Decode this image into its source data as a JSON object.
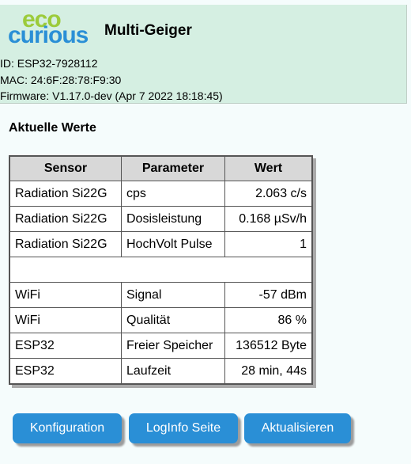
{
  "header": {
    "logo_top": "eco",
    "logo_bottom": "curious",
    "title": "Multi-Geiger",
    "id_line": "ID: ESP32-7928112",
    "mac_line": "MAC: 24:6F:28:78:F9:30",
    "firmware_line": "Firmware: V1.17.0-dev (Apr 7 2022 18:18:45)"
  },
  "colors": {
    "header_bg": "#d5efe2",
    "button_bg": "#2a8fd6",
    "logo_green": "#9ccb3b",
    "logo_blue": "#2a8fd6"
  },
  "section_title": "Aktuelle Werte",
  "table": {
    "headers": [
      "Sensor",
      "Parameter",
      "Wert"
    ],
    "rows": [
      [
        "Radiation Si22G",
        "cps",
        "2.063 c/s"
      ],
      [
        "Radiation Si22G",
        "Dosisleistung",
        "0.168 µSv/h"
      ],
      [
        "Radiation Si22G",
        "HochVolt Pulse",
        "1"
      ],
      [
        "",
        "",
        ""
      ],
      [
        "WiFi",
        "Signal",
        "-57 dBm"
      ],
      [
        "WiFi",
        "Qualität",
        "86 %"
      ],
      [
        "ESP32",
        "Freier Speicher",
        "136512 Byte"
      ],
      [
        "ESP32",
        "Laufzeit",
        "28 min, 44s"
      ]
    ]
  },
  "buttons": {
    "config": "Konfiguration",
    "loginfo": "LogInfo Seite",
    "refresh": "Aktualisieren"
  }
}
